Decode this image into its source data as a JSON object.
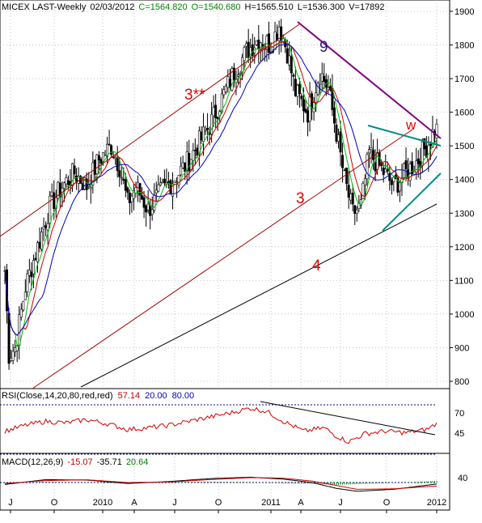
{
  "header": {
    "symbol": "MICEX LAST-Weekly",
    "date": "02/03/2012",
    "close": "C=1564.820",
    "open": "O=1540.680",
    "high": "H=1565.510",
    "low": "L=1536.300",
    "volume": "V=17892"
  },
  "rsi_header": {
    "label": "RSI(Close,14,20,80,red,red)",
    "value": "57.14",
    "low": "20.00",
    "high": "80.00"
  },
  "macd_header": {
    "label": "MACD(12,26,9)",
    "macd": "-15.07",
    "signal": "-35.71",
    "hist": "20.64"
  },
  "price_axis": [
    "1900",
    "1800",
    "1700",
    "1600",
    "1500",
    "1400",
    "1300",
    "1200",
    "1100",
    "1000",
    "900",
    "800"
  ],
  "rsi_axis": [
    "70",
    "45"
  ],
  "macd_axis": [
    "40"
  ],
  "time_axis": [
    "J",
    "O",
    "2010",
    "A",
    "J",
    "O",
    "2011",
    "A",
    "J",
    "O",
    "2012"
  ],
  "annotations": {
    "nine": "9",
    "w": "w",
    "three_star": "3**",
    "three": "3",
    "four": "4"
  },
  "colors": {
    "ma_fast": "#00c000",
    "ma_mid": "#d00000",
    "ma_slow": "#0000c0",
    "wave_label": "#e00000",
    "nine_label": "#1a1a8c",
    "resistance_line": "#800080",
    "triangle_line": "#008b8b",
    "level_line": "#000080"
  },
  "chart_data": [
    {
      "type": "candlestick",
      "title": "MICEX LAST-Weekly",
      "ylim": [
        780,
        1920
      ],
      "yticks": [
        800,
        900,
        1000,
        1100,
        1200,
        1300,
        1400,
        1500,
        1600,
        1700,
        1800,
        1900
      ],
      "x_ticks": [
        "J",
        "O",
        "2010",
        "A",
        "J",
        "O",
        "2011",
        "A",
        "J",
        "O",
        "2012"
      ],
      "close_path": [
        [
          0,
          1130
        ],
        [
          2,
          880
        ],
        [
          5,
          900
        ],
        [
          10,
          1080
        ],
        [
          16,
          1200
        ],
        [
          22,
          1320
        ],
        [
          28,
          1380
        ],
        [
          34,
          1420
        ],
        [
          40,
          1380
        ],
        [
          46,
          1460
        ],
        [
          52,
          1500
        ],
        [
          56,
          1440
        ],
        [
          60,
          1330
        ],
        [
          64,
          1380
        ],
        [
          70,
          1310
        ],
        [
          76,
          1360
        ],
        [
          82,
          1400
        ],
        [
          88,
          1440
        ],
        [
          94,
          1500
        ],
        [
          100,
          1560
        ],
        [
          106,
          1640
        ],
        [
          112,
          1720
        ],
        [
          118,
          1780
        ],
        [
          124,
          1820
        ],
        [
          130,
          1800
        ],
        [
          134,
          1860
        ],
        [
          138,
          1780
        ],
        [
          142,
          1660
        ],
        [
          148,
          1600
        ],
        [
          154,
          1720
        ],
        [
          158,
          1670
        ],
        [
          162,
          1540
        ],
        [
          166,
          1400
        ],
        [
          170,
          1300
        ],
        [
          174,
          1320
        ],
        [
          178,
          1480
        ],
        [
          184,
          1430
        ],
        [
          190,
          1380
        ],
        [
          196,
          1420
        ],
        [
          202,
          1460
        ],
        [
          207,
          1510
        ],
        [
          211,
          1565
        ]
      ],
      "last": {
        "open": 1540.68,
        "high": 1565.51,
        "low": 1536.3,
        "close": 1564.82,
        "volume": 17892
      },
      "overlays": [
        "moving average (green)",
        "moving average (red)",
        "moving average (blue)"
      ]
    },
    {
      "type": "line",
      "title": "RSI(Close,14,20,80,red,red)",
      "ylim": [
        20,
        80
      ],
      "reference_levels": [
        20,
        80
      ],
      "last": 57.14,
      "series": [
        {
          "values": [
            [
              0,
              48
            ],
            [
              10,
              55
            ],
            [
              20,
              60
            ],
            [
              30,
              58
            ],
            [
              40,
              62
            ],
            [
              50,
              57
            ],
            [
              60,
              50
            ],
            [
              70,
              52
            ],
            [
              80,
              55
            ],
            [
              90,
              60
            ],
            [
              100,
              65
            ],
            [
              110,
              70
            ],
            [
              120,
              76
            ],
            [
              128,
              72
            ],
            [
              136,
              60
            ],
            [
              146,
              48
            ],
            [
              156,
              52
            ],
            [
              162,
              42
            ],
            [
              168,
              35
            ],
            [
              176,
              45
            ],
            [
              186,
              48
            ],
            [
              196,
              46
            ],
            [
              206,
              50
            ],
            [
              211,
              57
            ]
          ]
        }
      ]
    },
    {
      "type": "line",
      "title": "MACD(12,26,9)",
      "last": {
        "macd": -15.07,
        "signal": -35.71,
        "histogram": 20.64
      },
      "series": [
        {
          "values": [
            [
              0,
              -20
            ],
            [
              20,
              30
            ],
            [
              40,
              25
            ],
            [
              60,
              -10
            ],
            [
              80,
              10
            ],
            [
              100,
              40
            ],
            [
              120,
              55
            ],
            [
              136,
              35
            ],
            [
              150,
              0
            ],
            [
              162,
              -60
            ],
            [
              172,
              -90
            ],
            [
              190,
              -70
            ],
            [
              211,
              -15
            ]
          ]
        },
        {
          "values": [
            [
              0,
              -10
            ],
            [
              20,
              20
            ],
            [
              40,
              28
            ],
            [
              60,
              0
            ],
            [
              80,
              5
            ],
            [
              100,
              30
            ],
            [
              120,
              50
            ],
            [
              136,
              45
            ],
            [
              150,
              15
            ],
            [
              162,
              -30
            ],
            [
              172,
              -70
            ],
            [
              190,
              -65
            ],
            [
              211,
              -36
            ]
          ]
        }
      ]
    }
  ]
}
